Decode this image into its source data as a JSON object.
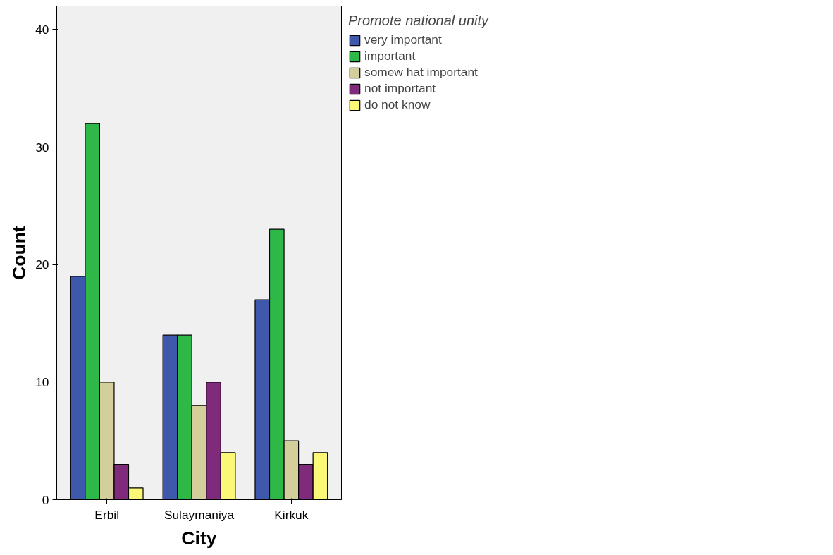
{
  "chart_data": {
    "type": "bar",
    "xlabel": "City",
    "ylabel": "Count",
    "legend_title": "Promote national unity",
    "categories": [
      "Erbil",
      "Sulaymaniya",
      "Kirkuk"
    ],
    "series": [
      {
        "name": "very important",
        "color": "#3e58ac",
        "values": [
          19,
          14,
          17
        ]
      },
      {
        "name": "important",
        "color": "#2eb848",
        "values": [
          32,
          14,
          23
        ]
      },
      {
        "name": "somew hat important",
        "color": "#d4cf9a",
        "values": [
          10,
          8,
          5
        ]
      },
      {
        "name": "not important",
        "color": "#7f2a7a",
        "values": [
          3,
          10,
          3
        ]
      },
      {
        "name": "do not know",
        "color": "#fbf877",
        "values": [
          1,
          4,
          4
        ]
      }
    ],
    "ylim": [
      0,
      42
    ],
    "yticks": [
      0,
      10,
      20,
      30,
      40
    ],
    "grid": false,
    "legend": "top right"
  }
}
